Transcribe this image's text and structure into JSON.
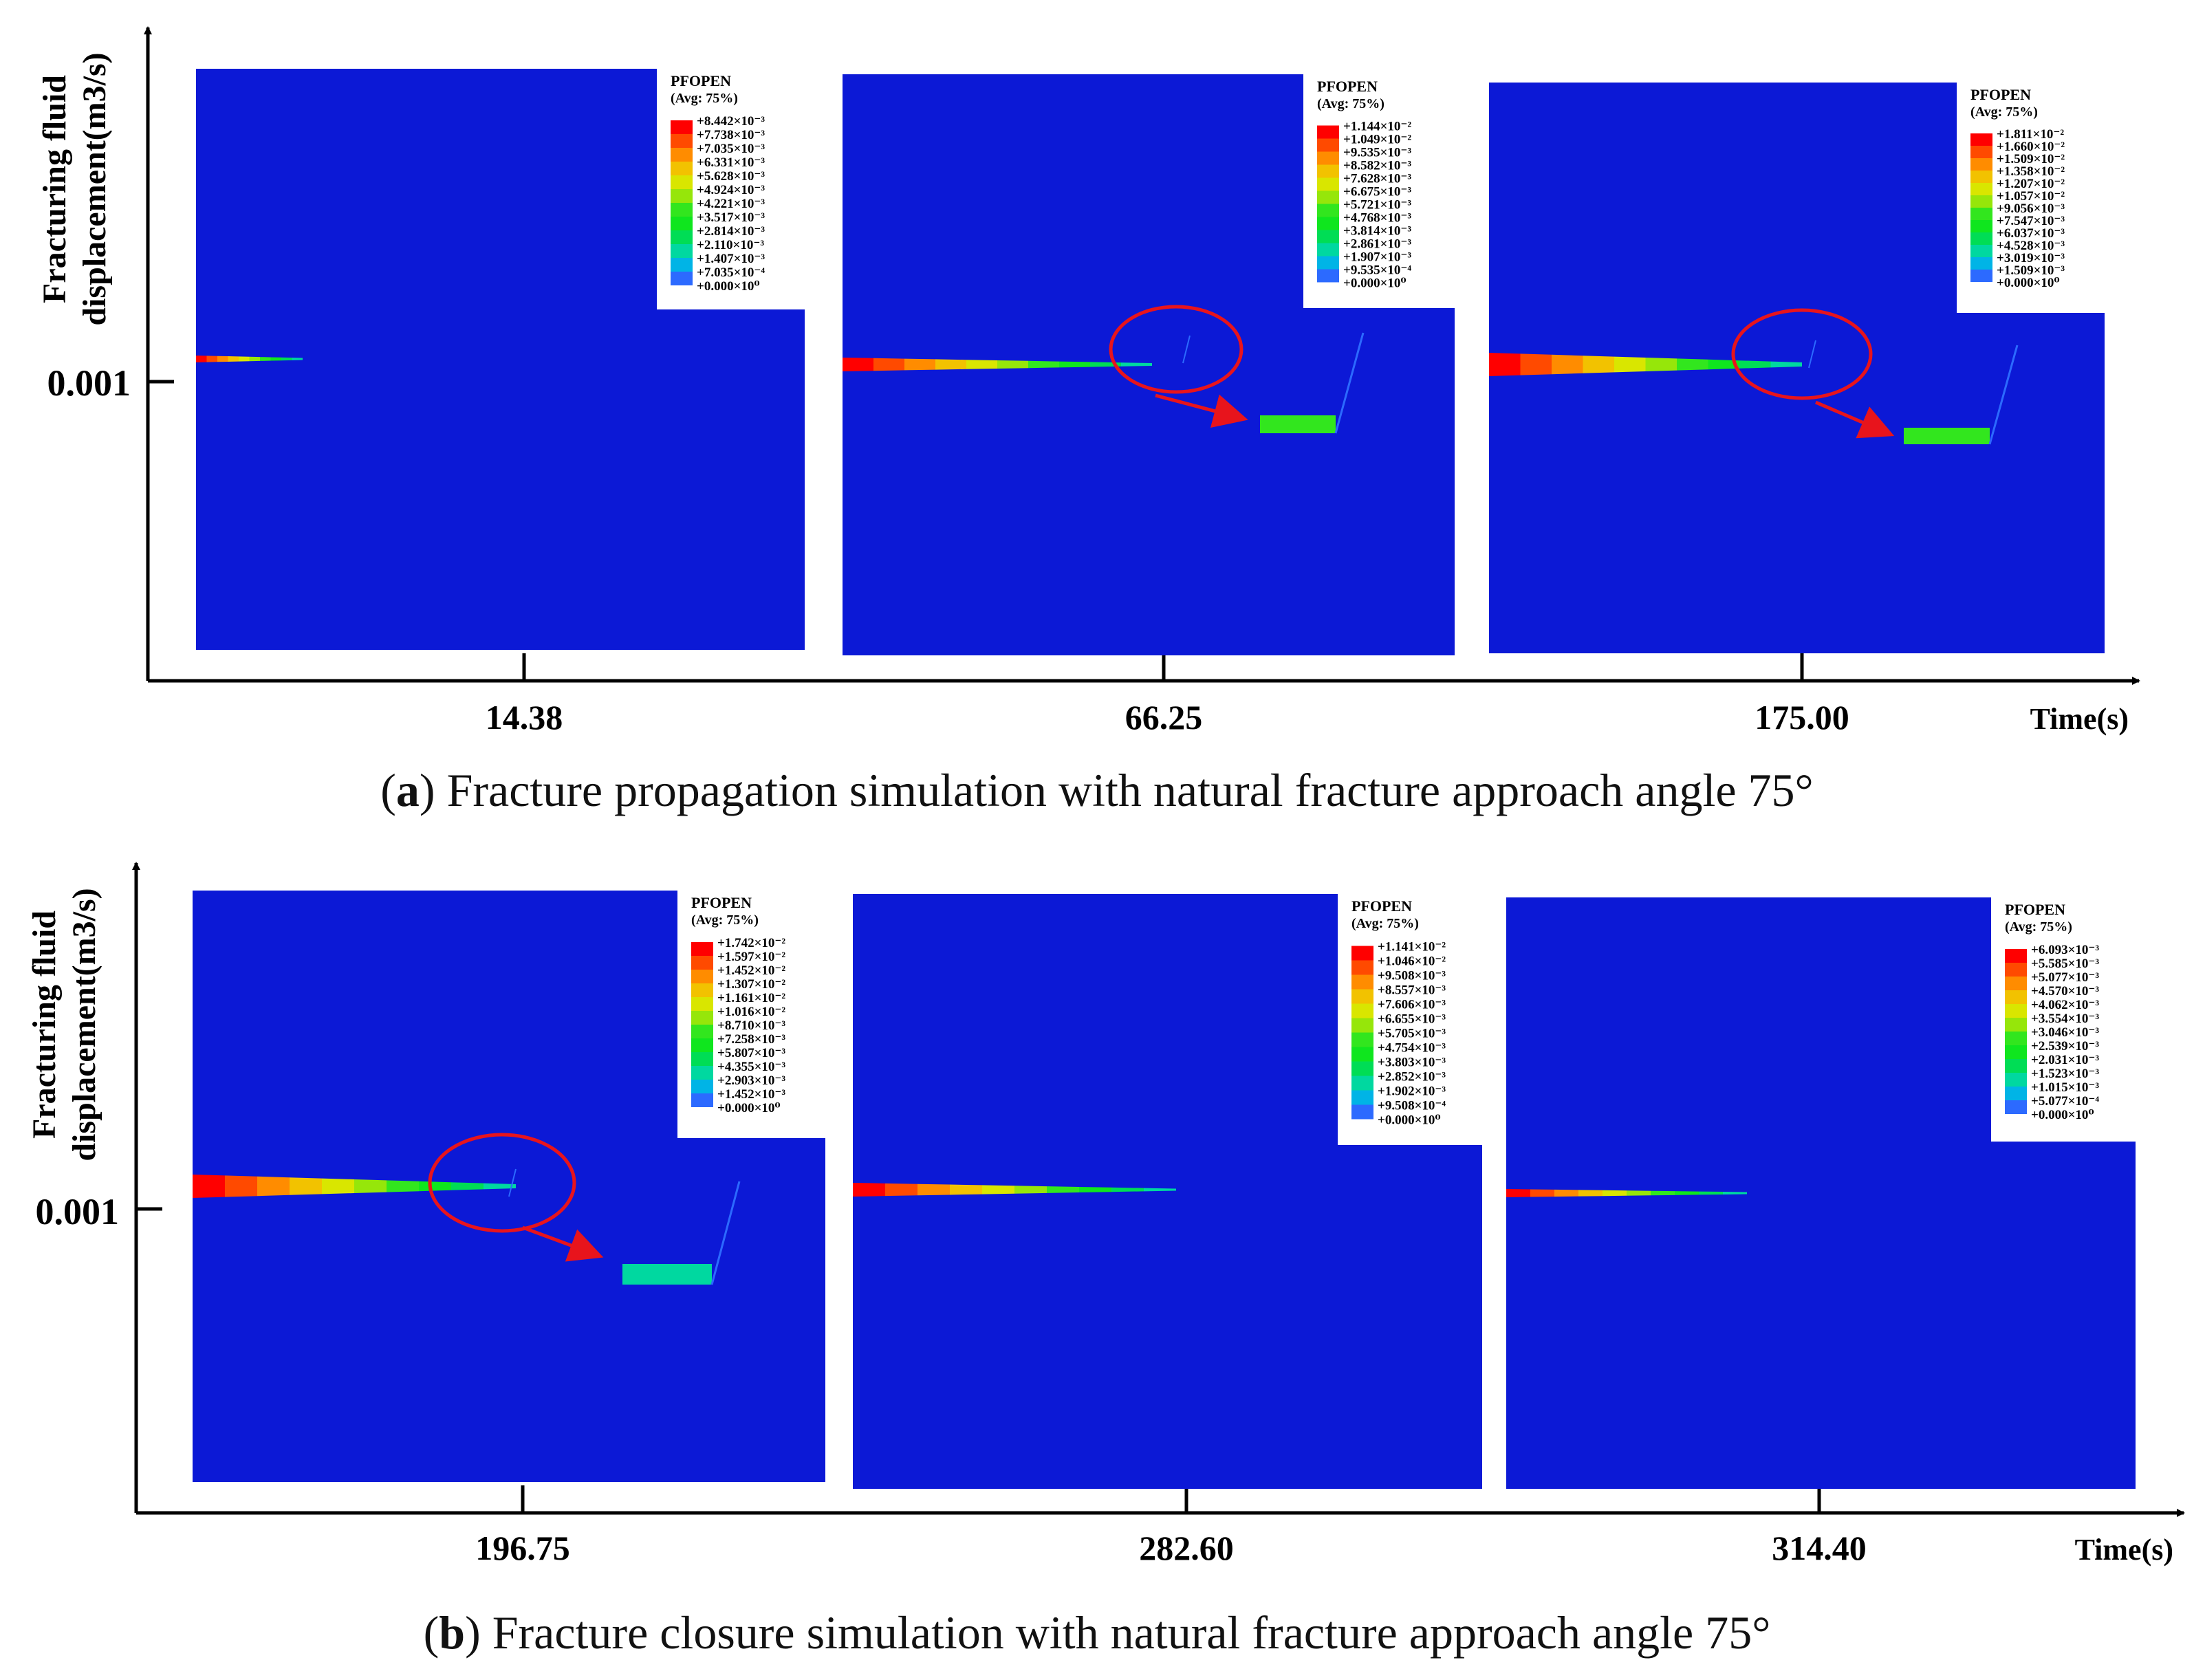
{
  "rows": [
    {
      "caption_letter": "a",
      "caption_text": ") Fracture propagation simulation with natural fracture approach angle 75°",
      "y_axis_label_line1": "Fracturing fluid",
      "y_axis_label_line2": "displacement(m3/s)",
      "y_tick": "0.001",
      "x_axis_label": "Time(s)",
      "panels": [
        {
          "time": "14.38",
          "legend_title": "PFOPEN",
          "legend_subtitle": "(Avg: 75%)",
          "legend_values": [
            "+8.442×10⁻³",
            "+7.738×10⁻³",
            "+7.035×10⁻³",
            "+6.331×10⁻³",
            "+5.628×10⁻³",
            "+4.924×10⁻³",
            "+4.221×10⁻³",
            "+3.517×10⁻³",
            "+2.814×10⁻³",
            "+2.110×10⁻³",
            "+1.407×10⁻³",
            "+7.035×10⁻⁴",
            "+0.000×10⁰"
          ],
          "highlight_circle": false
        },
        {
          "time": "66.25",
          "legend_title": "PFOPEN",
          "legend_subtitle": "(Avg: 75%)",
          "legend_values": [
            "+1.144×10⁻²",
            "+1.049×10⁻²",
            "+9.535×10⁻³",
            "+8.582×10⁻³",
            "+7.628×10⁻³",
            "+6.675×10⁻³",
            "+5.721×10⁻³",
            "+4.768×10⁻³",
            "+3.814×10⁻³",
            "+2.861×10⁻³",
            "+1.907×10⁻³",
            "+9.535×10⁻⁴",
            "+0.000×10⁰"
          ],
          "highlight_circle": true
        },
        {
          "time": "175.00",
          "legend_title": "PFOPEN",
          "legend_subtitle": "(Avg: 75%)",
          "legend_values": [
            "+1.811×10⁻²",
            "+1.660×10⁻²",
            "+1.509×10⁻²",
            "+1.358×10⁻²",
            "+1.207×10⁻²",
            "+1.057×10⁻²",
            "+9.056×10⁻³",
            "+7.547×10⁻³",
            "+6.037×10⁻³",
            "+4.528×10⁻³",
            "+3.019×10⁻³",
            "+1.509×10⁻³",
            "+0.000×10⁰"
          ],
          "highlight_circle": true
        }
      ]
    },
    {
      "caption_letter": "b",
      "caption_text": ") Fracture closure simulation with natural fracture approach angle 75°",
      "y_axis_label_line1": "Fracturing fluid",
      "y_axis_label_line2": "displacement(m3/s)",
      "y_tick": "0.001",
      "x_axis_label": "Time(s)",
      "panels": [
        {
          "time": "196.75",
          "legend_title": "PFOPEN",
          "legend_subtitle": "(Avg: 75%)",
          "legend_values": [
            "+1.742×10⁻²",
            "+1.597×10⁻²",
            "+1.452×10⁻²",
            "+1.307×10⁻²",
            "+1.161×10⁻²",
            "+1.016×10⁻²",
            "+8.710×10⁻³",
            "+7.258×10⁻³",
            "+5.807×10⁻³",
            "+4.355×10⁻³",
            "+2.903×10⁻³",
            "+1.452×10⁻³",
            "+0.000×10⁰"
          ],
          "highlight_circle": true
        },
        {
          "time": "282.60",
          "legend_title": "PFOPEN",
          "legend_subtitle": "(Avg: 75%)",
          "legend_values": [
            "+1.141×10⁻²",
            "+1.046×10⁻²",
            "+9.508×10⁻³",
            "+8.557×10⁻³",
            "+7.606×10⁻³",
            "+6.655×10⁻³",
            "+5.705×10⁻³",
            "+4.754×10⁻³",
            "+3.803×10⁻³",
            "+2.852×10⁻³",
            "+1.902×10⁻³",
            "+9.508×10⁻⁴",
            "+0.000×10⁰"
          ],
          "highlight_circle": false
        },
        {
          "time": "314.40",
          "legend_title": "PFOPEN",
          "legend_subtitle": "(Avg: 75%)",
          "legend_values": [
            "+6.093×10⁻³",
            "+5.585×10⁻³",
            "+5.077×10⁻³",
            "+4.570×10⁻³",
            "+4.062×10⁻³",
            "+3.554×10⁻³",
            "+3.046×10⁻³",
            "+2.539×10⁻³",
            "+2.031×10⁻³",
            "+1.523×10⁻³",
            "+1.015×10⁻³",
            "+5.077×10⁻⁴",
            "+0.000×10⁰"
          ],
          "highlight_circle": false
        }
      ]
    }
  ],
  "colors": {
    "field": "#0c19d6",
    "axis": "#000000",
    "annotation": "#e8141c",
    "contour_scale": [
      "#ff0000",
      "#ff4a00",
      "#ff8c00",
      "#f2c200",
      "#d9e600",
      "#96e60a",
      "#32e61e",
      "#0fe61e",
      "#00dd55",
      "#00d8a0",
      "#00b4e6",
      "#2c6aff",
      "#0a16e6"
    ]
  }
}
